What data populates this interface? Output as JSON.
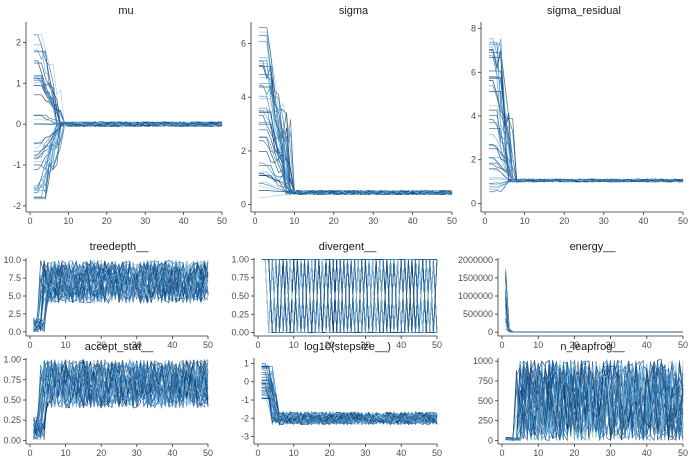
{
  "chart_data": [
    {
      "type": "line",
      "title": "mu",
      "xlabel": "",
      "ylabel": "",
      "xlim": [
        0,
        50
      ],
      "ylim": [
        -2.1,
        2.5
      ],
      "xticks": [
        0,
        10,
        20,
        30,
        40,
        50
      ],
      "xtick_labels": [
        "0",
        "10",
        "20",
        "30",
        "40",
        "50"
      ],
      "yticks": [
        -2,
        -1,
        0,
        1,
        2
      ],
      "ytick_labels": [
        "-2",
        "-1",
        "0",
        "1",
        "2"
      ],
      "series_count": 40,
      "iterations": [
        1,
        50
      ],
      "warmup_spread": [
        -1.9,
        2.3
      ],
      "converged_level": 0.0,
      "converged_spread": 0.06,
      "converge_iter": 8,
      "kind": "level"
    },
    {
      "type": "line",
      "title": "sigma",
      "xlabel": "",
      "ylabel": "",
      "xlim": [
        0,
        50
      ],
      "ylim": [
        -0.2,
        6.8
      ],
      "xticks": [
        0,
        10,
        20,
        30,
        40,
        50
      ],
      "xtick_labels": [
        "0",
        "10",
        "20",
        "30",
        "40",
        "50"
      ],
      "yticks": [
        0,
        2,
        4,
        6
      ],
      "ytick_labels": [
        "0",
        "2",
        "4",
        "6"
      ],
      "series_count": 40,
      "iterations": [
        1,
        50
      ],
      "warmup_spread": [
        0.05,
        6.6
      ],
      "converged_level": 0.45,
      "converged_spread": 0.08,
      "converge_iter": 9,
      "kind": "level"
    },
    {
      "type": "line",
      "title": "sigma_residual",
      "xlabel": "",
      "ylabel": "",
      "xlim": [
        0,
        50
      ],
      "ylim": [
        -0.3,
        8.3
      ],
      "xticks": [
        0,
        10,
        20,
        30,
        40,
        50
      ],
      "xtick_labels": [
        "0",
        "10",
        "20",
        "30",
        "40",
        "50"
      ],
      "yticks": [
        0,
        2,
        4,
        6,
        8
      ],
      "ytick_labels": [
        "0",
        "2",
        "4",
        "6",
        "8"
      ],
      "series_count": 40,
      "iterations": [
        1,
        50
      ],
      "warmup_spread": [
        0.1,
        8.0
      ],
      "converged_level": 1.05,
      "converged_spread": 0.07,
      "converge_iter": 7,
      "kind": "level"
    },
    {
      "type": "line",
      "title": "treedepth__",
      "xlabel": "",
      "ylabel": "",
      "xlim": [
        0,
        50
      ],
      "ylim": [
        -0.3,
        10.3
      ],
      "xticks": [
        0,
        10,
        20,
        30,
        40,
        50
      ],
      "xtick_labels": [
        "0",
        "10",
        "20",
        "30",
        "40",
        "50"
      ],
      "yticks": [
        0,
        2.5,
        5,
        7.5,
        10
      ],
      "ytick_labels": [
        "0.0",
        "2.5",
        "5.0",
        "7.5",
        "10.0"
      ],
      "series_count": 40,
      "iterations": [
        1,
        50
      ],
      "warmup_spread": [
        0,
        2
      ],
      "converged_level": 7,
      "converged_spread": 3,
      "converge_iter": 4,
      "kind": "noisy",
      "range": [
        0,
        10
      ]
    },
    {
      "type": "line",
      "title": "divergent__",
      "xlabel": "",
      "ylabel": "",
      "xlim": [
        0,
        50
      ],
      "ylim": [
        -0.02,
        1.02
      ],
      "xticks": [
        0,
        10,
        20,
        30,
        40,
        50
      ],
      "xtick_labels": [
        "0",
        "10",
        "20",
        "30",
        "40",
        "50"
      ],
      "yticks": [
        0,
        0.25,
        0.5,
        0.75,
        1
      ],
      "ytick_labels": [
        "0.00",
        "0.25",
        "0.50",
        "0.75",
        "1.00"
      ],
      "series_count": 40,
      "iterations": [
        1,
        50
      ],
      "warmup_spread": [
        1,
        1
      ],
      "converged_level": 0.5,
      "converged_spread": 0.5,
      "converge_iter": 4,
      "kind": "binary"
    },
    {
      "type": "line",
      "title": "energy__",
      "xlabel": "",
      "ylabel": "",
      "xlim": [
        0,
        50
      ],
      "ylim": [
        -50000,
        2050000
      ],
      "xticks": [
        0,
        10,
        20,
        30,
        40,
        50
      ],
      "xtick_labels": [
        "0",
        "10",
        "20",
        "30",
        "40",
        "50"
      ],
      "yticks": [
        0,
        500000,
        1000000,
        1500000,
        2000000
      ],
      "ytick_labels": [
        "0",
        "500000",
        "1000000",
        "1500000",
        "2000000"
      ],
      "series_count": 40,
      "iterations": [
        1,
        50
      ],
      "warmup_spread": [
        20000,
        1900000
      ],
      "converged_level": 5000,
      "converged_spread": 3000,
      "converge_iter": 10,
      "kind": "spike"
    },
    {
      "type": "line",
      "title": "accept_stat__",
      "xlabel": "",
      "ylabel": "",
      "xlim": [
        0,
        50
      ],
      "ylim": [
        -0.02,
        1.02
      ],
      "xticks": [
        0,
        10,
        20,
        30,
        40,
        50
      ],
      "xtick_labels": [
        "0",
        "10",
        "20",
        "30",
        "40",
        "50"
      ],
      "yticks": [
        0,
        0.25,
        0.5,
        0.75,
        1
      ],
      "ytick_labels": [
        "0.00",
        "0.25",
        "0.50",
        "0.75",
        "1.00"
      ],
      "series_count": 40,
      "iterations": [
        1,
        50
      ],
      "warmup_spread": [
        0,
        0.3
      ],
      "converged_level": 0.7,
      "converged_spread": 0.3,
      "converge_iter": 4,
      "kind": "noisy",
      "range": [
        0,
        1
      ]
    },
    {
      "type": "line",
      "title": "log10(stepsize__)",
      "xlabel": "",
      "ylabel": "",
      "xlim": [
        0,
        50
      ],
      "ylim": [
        -3.3,
        1.3
      ],
      "xticks": [
        0,
        10,
        20,
        30,
        40,
        50
      ],
      "xtick_labels": [
        "0",
        "10",
        "20",
        "30",
        "40",
        "50"
      ],
      "yticks": [
        -3,
        -2,
        -1,
        0,
        1
      ],
      "ytick_labels": [
        "-3",
        "-2",
        "-1",
        "0",
        "1"
      ],
      "series_count": 40,
      "iterations": [
        1,
        50
      ],
      "warmup_spread": [
        -1,
        1.1
      ],
      "converged_level": -2.0,
      "converged_spread": 0.35,
      "converge_iter": 5,
      "kind": "level"
    },
    {
      "type": "line",
      "title": "n_leapfrog__",
      "xlabel": "",
      "ylabel": "",
      "xlim": [
        0,
        50
      ],
      "ylim": [
        -20,
        1040
      ],
      "xticks": [
        0,
        10,
        20,
        30,
        40,
        50
      ],
      "xtick_labels": [
        "0",
        "10",
        "20",
        "30",
        "40",
        "50"
      ],
      "yticks": [
        0,
        250,
        500,
        750,
        1000
      ],
      "ytick_labels": [
        "0",
        "250",
        "500",
        "750",
        "1000"
      ],
      "series_count": 40,
      "iterations": [
        1,
        50
      ],
      "warmup_spread": [
        0,
        40
      ],
      "converged_level": 500,
      "converged_spread": 520,
      "converge_iter": 5,
      "kind": "noisy",
      "range": [
        0,
        1023
      ]
    }
  ],
  "colors": {
    "palette": [
      "#08306b",
      "#08519c",
      "#2171b5",
      "#4292c6",
      "#6baed6",
      "#9ecae1",
      "#3b6c96",
      "#1f4e79"
    ],
    "axis": "#333333",
    "text": "#1a1a1a"
  }
}
